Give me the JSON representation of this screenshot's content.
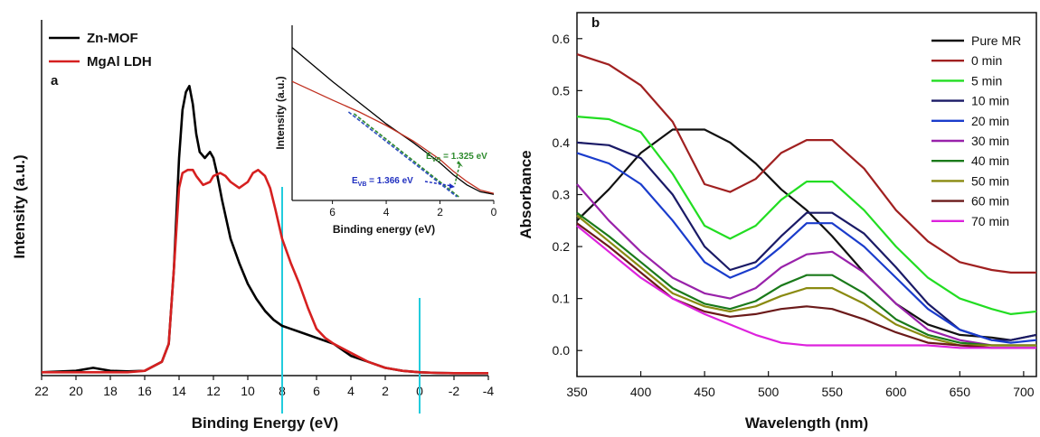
{
  "chart_data": [
    {
      "type": "line",
      "panel_label": "a",
      "xlabel": "Binding Energy (eV)",
      "ylabel": "Intensity (a.u.)",
      "xlim": [
        22,
        -4
      ],
      "xticks": [
        "22",
        "20",
        "18",
        "16",
        "14",
        "12",
        "10",
        "8",
        "6",
        "4",
        "2",
        "0",
        "-2",
        "-4"
      ],
      "legend_position": "top-left",
      "reference_lines_x": [
        8,
        0
      ],
      "reference_line_color": "#22ccdd",
      "series": [
        {
          "name": "Zn-MOF",
          "color": "#000000",
          "x": [
            22,
            20,
            19,
            18,
            17,
            16,
            15,
            14.6,
            14.3,
            14,
            13.8,
            13.6,
            13.4,
            13.2,
            13,
            12.8,
            12.5,
            12.2,
            12,
            11.8,
            11.5,
            11,
            10.5,
            10,
            9.5,
            9,
            8.5,
            8,
            7.5,
            7,
            6,
            5,
            4.5,
            4,
            3,
            2,
            1,
            0,
            -1,
            -2,
            -3,
            -4
          ],
          "y": [
            0.005,
            0.01,
            0.02,
            0.01,
            0.008,
            0.01,
            0.04,
            0.1,
            0.35,
            0.72,
            0.88,
            0.94,
            0.96,
            0.9,
            0.8,
            0.74,
            0.72,
            0.74,
            0.72,
            0.67,
            0.58,
            0.45,
            0.37,
            0.3,
            0.25,
            0.21,
            0.18,
            0.16,
            0.15,
            0.14,
            0.12,
            0.1,
            0.08,
            0.06,
            0.04,
            0.02,
            0.01,
            0.005,
            0.003,
            0.002,
            0.002,
            0.002
          ]
        },
        {
          "name": "MgAl LDH",
          "color": "#d62020",
          "x": [
            22,
            20,
            18,
            17,
            16,
            15,
            14.6,
            14.3,
            14,
            13.8,
            13.5,
            13.2,
            13,
            12.6,
            12.2,
            12,
            11.6,
            11.3,
            11,
            10.5,
            10,
            9.7,
            9.4,
            9,
            8.7,
            8.4,
            8,
            7.5,
            7,
            6.5,
            6,
            5.5,
            5,
            4,
            3,
            2,
            1,
            0,
            -1,
            -2,
            -3,
            -4
          ],
          "y": [
            0.005,
            0.005,
            0.005,
            0.005,
            0.01,
            0.04,
            0.1,
            0.35,
            0.62,
            0.67,
            0.68,
            0.68,
            0.66,
            0.63,
            0.64,
            0.66,
            0.67,
            0.66,
            0.64,
            0.62,
            0.64,
            0.67,
            0.68,
            0.66,
            0.62,
            0.55,
            0.45,
            0.37,
            0.3,
            0.22,
            0.15,
            0.12,
            0.1,
            0.07,
            0.04,
            0.02,
            0.01,
            0.005,
            0.003,
            0.002,
            0.002,
            0.002
          ]
        }
      ],
      "inset": {
        "type": "line",
        "xlabel": "Binding energy (eV)",
        "ylabel": "Intensity (a.u.)",
        "xlim": [
          7.5,
          0
        ],
        "xticks": [
          "6",
          "4",
          "2",
          "0"
        ],
        "series": [
          {
            "name": "Zn-MOF",
            "color": "#000000",
            "x": [
              7.5,
              6,
              4,
              3,
              2,
              1.5,
              1,
              0.5,
              0
            ],
            "y": [
              0.88,
              0.68,
              0.43,
              0.32,
              0.2,
              0.13,
              0.07,
              0.03,
              0.015
            ]
          },
          {
            "name": "MgAl LDH",
            "color": "#c03020",
            "x": [
              7.5,
              6,
              5,
              4,
              3,
              2,
              1.5,
              1,
              0.5,
              0
            ],
            "y": [
              0.68,
              0.57,
              0.5,
              0.42,
              0.33,
              0.22,
              0.15,
              0.09,
              0.04,
              0.02
            ]
          }
        ],
        "fits": [
          {
            "color": "#2e8b2e",
            "x": [
              5.2,
              1.3
            ],
            "y": [
              0.49,
              0.0
            ]
          },
          {
            "color": "#3050c0",
            "x": [
              5.4,
              1.37
            ],
            "y": [
              0.5,
              0.0
            ]
          }
        ],
        "annotations": [
          {
            "text_main": "E",
            "text_sub": "VB",
            "text_value": " = 1.325 eV",
            "color": "#2e8b2e"
          },
          {
            "text_main": "E",
            "text_sub": "VB",
            "text_value": " = 1.366 eV",
            "color": "#2030c0"
          }
        ]
      }
    },
    {
      "type": "line",
      "panel_label": "b",
      "xlabel": "Wavelength (nm)",
      "ylabel": "Absorbance",
      "xlim": [
        350,
        710
      ],
      "ylim": [
        -0.05,
        0.65
      ],
      "xticks": [
        "350",
        "400",
        "450",
        "500",
        "550",
        "600",
        "650",
        "700"
      ],
      "yticks": [
        "0.0",
        "0.1",
        "0.2",
        "0.3",
        "0.4",
        "0.5",
        "0.6"
      ],
      "legend_position": "top-right",
      "x": [
        350,
        375,
        400,
        425,
        450,
        470,
        490,
        510,
        530,
        550,
        575,
        600,
        625,
        650,
        675,
        690,
        710
      ],
      "series": [
        {
          "name": "Pure MR",
          "color": "#111111",
          "values": [
            0.25,
            0.31,
            0.38,
            0.425,
            0.425,
            0.4,
            0.36,
            0.31,
            0.27,
            0.22,
            0.15,
            0.09,
            0.05,
            0.03,
            0.025,
            0.02,
            0.03
          ]
        },
        {
          "name": "0 min",
          "color": "#a02020",
          "values": [
            0.57,
            0.55,
            0.51,
            0.44,
            0.32,
            0.305,
            0.33,
            0.38,
            0.405,
            0.405,
            0.35,
            0.27,
            0.21,
            0.17,
            0.155,
            0.15,
            0.15
          ]
        },
        {
          "name": "5 min",
          "color": "#22dd22",
          "values": [
            0.45,
            0.445,
            0.42,
            0.34,
            0.24,
            0.215,
            0.24,
            0.29,
            0.325,
            0.325,
            0.27,
            0.2,
            0.14,
            0.1,
            0.08,
            0.07,
            0.075
          ]
        },
        {
          "name": "10 min",
          "color": "#1a1a66",
          "values": [
            0.4,
            0.395,
            0.37,
            0.3,
            0.2,
            0.155,
            0.17,
            0.22,
            0.265,
            0.265,
            0.225,
            0.16,
            0.09,
            0.04,
            0.02,
            0.02,
            0.03
          ]
        },
        {
          "name": "20 min",
          "color": "#1a3ccc",
          "values": [
            0.38,
            0.36,
            0.32,
            0.25,
            0.17,
            0.14,
            0.16,
            0.2,
            0.245,
            0.245,
            0.2,
            0.14,
            0.08,
            0.04,
            0.02,
            0.015,
            0.02
          ]
        },
        {
          "name": "30 min",
          "color": "#9922aa",
          "values": [
            0.32,
            0.25,
            0.19,
            0.14,
            0.11,
            0.1,
            0.12,
            0.16,
            0.185,
            0.19,
            0.15,
            0.09,
            0.04,
            0.02,
            0.01,
            0.01,
            0.01
          ]
        },
        {
          "name": "40 min",
          "color": "#1a7a1a",
          "values": [
            0.265,
            0.22,
            0.17,
            0.12,
            0.09,
            0.08,
            0.095,
            0.125,
            0.145,
            0.145,
            0.11,
            0.06,
            0.03,
            0.015,
            0.01,
            0.01,
            0.01
          ]
        },
        {
          "name": "50 min",
          "color": "#8a8a10",
          "values": [
            0.26,
            0.21,
            0.16,
            0.11,
            0.085,
            0.075,
            0.085,
            0.105,
            0.12,
            0.12,
            0.09,
            0.05,
            0.025,
            0.01,
            0.01,
            0.01,
            0.01
          ]
        },
        {
          "name": "60 min",
          "color": "#6b1a1a",
          "values": [
            0.245,
            0.2,
            0.15,
            0.1,
            0.075,
            0.065,
            0.07,
            0.08,
            0.085,
            0.08,
            0.06,
            0.035,
            0.015,
            0.01,
            0.005,
            0.005,
            0.005
          ]
        },
        {
          "name": "70 min",
          "color": "#dd22dd",
          "values": [
            0.24,
            0.19,
            0.14,
            0.1,
            0.07,
            0.05,
            0.03,
            0.015,
            0.01,
            0.01,
            0.01,
            0.01,
            0.01,
            0.005,
            0.005,
            0.005,
            0.005
          ]
        }
      ]
    }
  ]
}
